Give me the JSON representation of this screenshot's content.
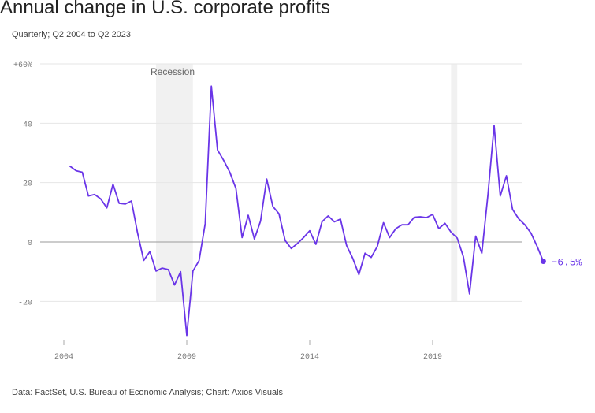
{
  "chart_data": {
    "type": "line",
    "title": "Annual change in U.S. corporate profits",
    "subtitle": "Quarterly; Q2 2004 to Q2 2023",
    "source": "Data: FactSet, U.S. Bureau of Economic Analysis; Chart: Axios Visuals",
    "ylim": [
      -32,
      60
    ],
    "xlim": [
      2003,
      2024.5
    ],
    "y_ticks": [
      {
        "value": 60,
        "label": "+60%"
      },
      {
        "value": 40,
        "label": "40"
      },
      {
        "value": 20,
        "label": "20"
      },
      {
        "value": 0,
        "label": "0"
      },
      {
        "value": -20,
        "label": "-20"
      }
    ],
    "x_ticks": [
      {
        "value": 2004,
        "label": "2004"
      },
      {
        "value": 2009,
        "label": "2009"
      },
      {
        "value": 2014,
        "label": "2014"
      },
      {
        "value": 2019,
        "label": "2019"
      }
    ],
    "recessions": [
      {
        "start": 2007.75,
        "end": 2009.25,
        "label": "Recession"
      },
      {
        "start": 2019.75,
        "end": 2020.0,
        "label": ""
      }
    ],
    "end_label": "−6.5%",
    "line_color": "#6a35e8",
    "series": [
      {
        "name": "Annual change in corporate profits",
        "x": [
          2004.25,
          2004.5,
          2004.75,
          2005.0,
          2005.25,
          2005.5,
          2005.75,
          2006.0,
          2006.25,
          2006.5,
          2006.75,
          2007.0,
          2007.25,
          2007.5,
          2007.75,
          2008.0,
          2008.25,
          2008.5,
          2008.75,
          2009.0,
          2009.25,
          2009.5,
          2009.75,
          2010.0,
          2010.25,
          2010.5,
          2010.75,
          2011.0,
          2011.25,
          2011.5,
          2011.75,
          2012.0,
          2012.25,
          2012.5,
          2012.75,
          2013.0,
          2013.25,
          2013.5,
          2013.75,
          2014.0,
          2014.25,
          2014.5,
          2014.75,
          2015.0,
          2015.25,
          2015.5,
          2015.75,
          2016.0,
          2016.25,
          2016.5,
          2016.75,
          2017.0,
          2017.25,
          2017.5,
          2017.75,
          2018.0,
          2018.25,
          2018.5,
          2018.75,
          2019.0,
          2019.25,
          2019.5,
          2019.75,
          2020.0,
          2020.25,
          2020.5,
          2020.75,
          2021.0,
          2021.25,
          2021.5,
          2021.75,
          2022.0,
          2022.25,
          2022.5,
          2022.75,
          2023.0,
          2023.25,
          2023.5
        ],
        "values": [
          25.5,
          24,
          23.5,
          15.5,
          16,
          14.5,
          11.5,
          19.5,
          13,
          12.8,
          13.8,
          3,
          -6.2,
          -3.2,
          -9.8,
          -8.8,
          -9.3,
          -14.5,
          -10,
          -31.5,
          -9.8,
          -6.3,
          6.2,
          52.5,
          31,
          27.5,
          23.5,
          18,
          1.5,
          9,
          1,
          7,
          21.2,
          12,
          9.5,
          0.5,
          -2.2,
          -0.5,
          1.5,
          3.8,
          -0.8,
          6.8,
          8.8,
          6.8,
          7.7,
          -1.2,
          -5.5,
          -11,
          -3.8,
          -5.2,
          -1.5,
          6.5,
          1.5,
          4.5,
          5.8,
          5.8,
          8.3,
          8.5,
          8.2,
          9.3,
          4.5,
          6.3,
          3.3,
          1.3,
          -5,
          -17.5,
          2,
          -3.8,
          16,
          39.2,
          15.5,
          22.3,
          11,
          7.8,
          5.8,
          3,
          -1.5,
          -6.5
        ]
      }
    ]
  }
}
